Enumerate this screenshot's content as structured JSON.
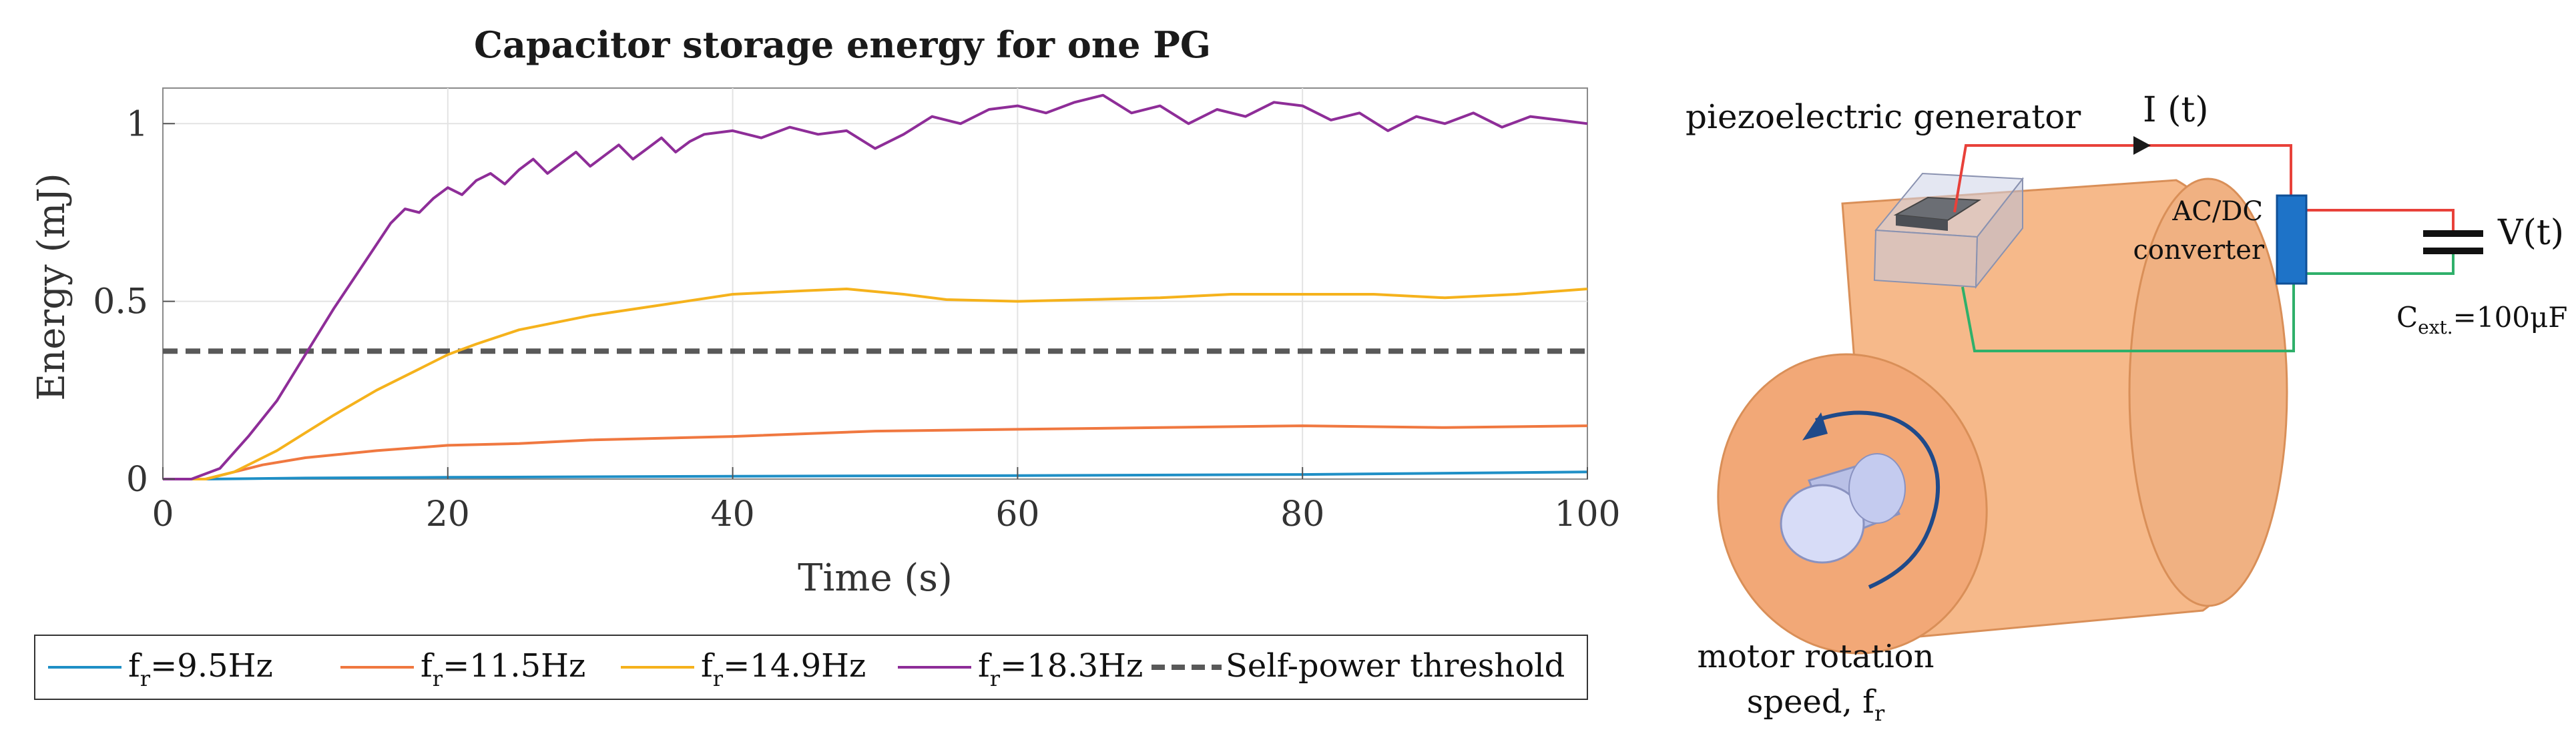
{
  "chart_data": {
    "type": "line",
    "title": "Capacitor storage energy for one PG",
    "xlabel": "Time (s)",
    "ylabel": "Energy (mJ)",
    "xlim": [
      0,
      100
    ],
    "ylim": [
      0,
      1.1
    ],
    "xticks": [
      0,
      20,
      40,
      60,
      80,
      100
    ],
    "yticks": [
      0,
      0.5,
      1
    ],
    "xtick_labels": [
      "0",
      "20",
      "40",
      "60",
      "80",
      "100"
    ],
    "ytick_labels": [
      "0",
      "0.5",
      "1"
    ],
    "grid": true,
    "legend_placement": "bottom-outside",
    "series": [
      {
        "name": "fr=9.5Hz",
        "legend_main": "f",
        "legend_sub": "r",
        "legend_rest": "=9.5Hz",
        "color": "#1f8fc6",
        "x": [
          0,
          3,
          10,
          20,
          40,
          60,
          80,
          100
        ],
        "y": [
          0,
          0,
          0.003,
          0.005,
          0.008,
          0.01,
          0.013,
          0.02
        ]
      },
      {
        "name": "fr=11.5Hz",
        "legend_main": "f",
        "legend_sub": "r",
        "legend_rest": "=11.5Hz",
        "color": "#f07840",
        "x": [
          0,
          3,
          5,
          7,
          10,
          15,
          20,
          25,
          30,
          40,
          50,
          60,
          70,
          80,
          90,
          100
        ],
        "y": [
          0,
          0,
          0.02,
          0.04,
          0.06,
          0.08,
          0.095,
          0.1,
          0.11,
          0.12,
          0.135,
          0.14,
          0.145,
          0.15,
          0.145,
          0.15
        ]
      },
      {
        "name": "fr=14.9Hz",
        "legend_main": "f",
        "legend_sub": "r",
        "legend_rest": "=14.9Hz",
        "color": "#f5b21c",
        "x": [
          0,
          3,
          5,
          8,
          10,
          12,
          15,
          18,
          20,
          22,
          25,
          30,
          35,
          40,
          45,
          48,
          52,
          55,
          60,
          65,
          70,
          75,
          80,
          85,
          90,
          95,
          100
        ],
        "y": [
          0,
          0,
          0.02,
          0.08,
          0.13,
          0.18,
          0.25,
          0.31,
          0.35,
          0.38,
          0.42,
          0.46,
          0.49,
          0.52,
          0.53,
          0.535,
          0.52,
          0.505,
          0.5,
          0.505,
          0.51,
          0.52,
          0.52,
          0.52,
          0.51,
          0.52,
          0.535
        ]
      },
      {
        "name": "fr=18.3Hz",
        "legend_main": "f",
        "legend_sub": "r",
        "legend_rest": "=18.3Hz",
        "color": "#8e2d98",
        "x": [
          0,
          2,
          4,
          6,
          8,
          10,
          12,
          14,
          16,
          17,
          18,
          19,
          20,
          21,
          22,
          23,
          24,
          25,
          26,
          27,
          28,
          29,
          30,
          31,
          32,
          33,
          34,
          35,
          36,
          37,
          38,
          40,
          42,
          44,
          46,
          48,
          50,
          52,
          54,
          56,
          58,
          60,
          62,
          64,
          66,
          68,
          70,
          72,
          74,
          76,
          78,
          80,
          82,
          84,
          86,
          88,
          90,
          92,
          94,
          96,
          98,
          100
        ],
        "y": [
          0,
          0,
          0.03,
          0.12,
          0.22,
          0.35,
          0.48,
          0.6,
          0.72,
          0.76,
          0.75,
          0.79,
          0.82,
          0.8,
          0.84,
          0.86,
          0.83,
          0.87,
          0.9,
          0.86,
          0.89,
          0.92,
          0.88,
          0.91,
          0.94,
          0.9,
          0.93,
          0.96,
          0.92,
          0.95,
          0.97,
          0.98,
          0.96,
          0.99,
          0.97,
          0.98,
          0.93,
          0.97,
          1.02,
          1.0,
          1.04,
          1.05,
          1.03,
          1.06,
          1.08,
          1.03,
          1.05,
          1.0,
          1.04,
          1.02,
          1.06,
          1.05,
          1.01,
          1.03,
          0.98,
          1.02,
          1.0,
          1.03,
          0.99,
          1.02,
          1.01,
          1.0
        ]
      }
    ],
    "threshold": {
      "name": "Self-power threshold",
      "legend_text": "Self-power threshold",
      "value": 0.36,
      "color": "#595959"
    }
  },
  "diagram": {
    "generator_label": "piezoelectric generator",
    "current_label": "I (t)",
    "voltage_label": "V(t)",
    "converter_label_line1": "AC/DC",
    "converter_label_line2": "converter",
    "cap_label_main": "C",
    "cap_label_sub": "ext.",
    "cap_label_rest": "=100μF",
    "motor_label_line1": "motor rotation",
    "motor_label_line2_main": "speed, f",
    "motor_label_line2_sub": "r",
    "colors": {
      "cylinder": "#f6b98a",
      "cylinder_edge": "#d98f58",
      "wire_red": "#e8413a",
      "wire_green": "#2fb06a",
      "converter": "#1e73c8",
      "arrow": "#1f4a8a",
      "shaft": "#c9cff0"
    }
  }
}
